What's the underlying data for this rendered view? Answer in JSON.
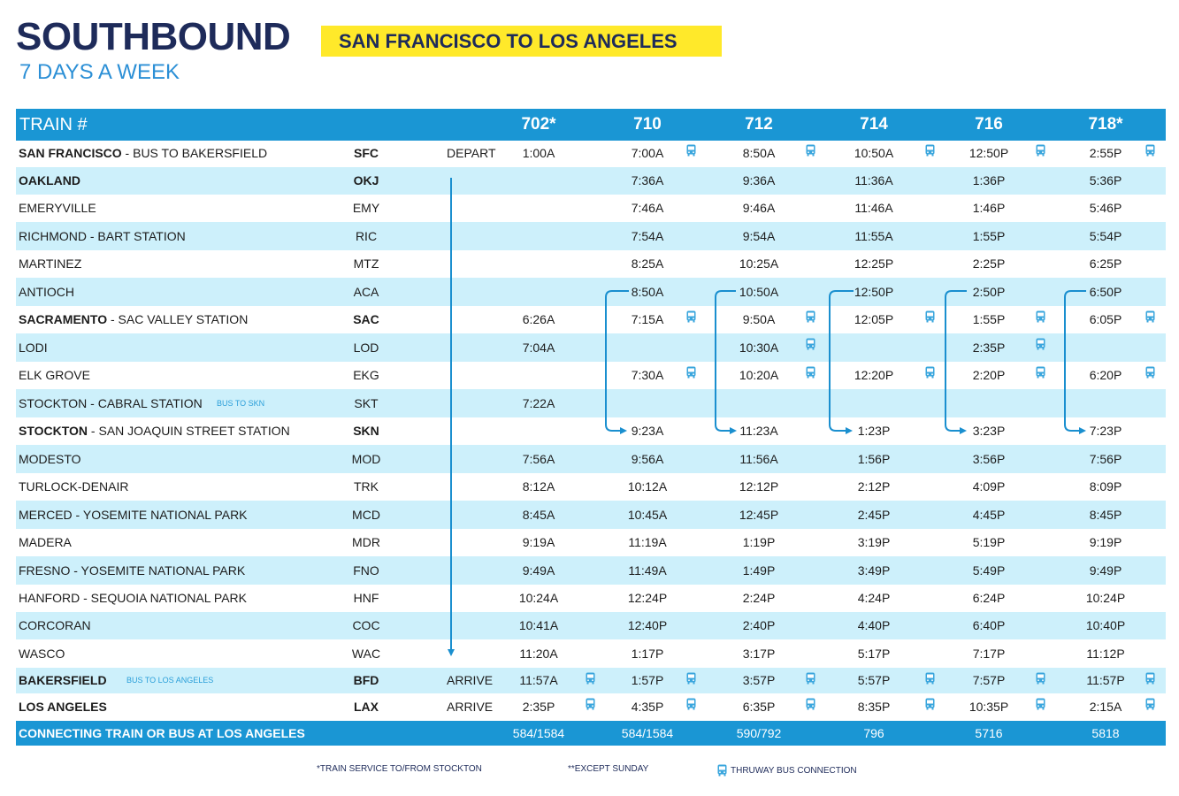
{
  "header": {
    "title": "SOUTHBOUND",
    "route": "SAN FRANCISCO TO LOS ANGELES",
    "days": "7 DAYS A WEEK"
  },
  "table": {
    "train_label": "TRAIN #",
    "trains": [
      "702*",
      "710",
      "712",
      "714",
      "716",
      "718*"
    ],
    "rows": [
      {
        "station": "SAN FRANCISCO",
        "suffix": " - BUS TO BAKERSFIELD",
        "code": "SFC",
        "action": "DEPART",
        "bold": true,
        "times": [
          "1:00A",
          "7:00A",
          "8:50A",
          "10:50A",
          "12:50P",
          "2:55P"
        ],
        "bus": [
          false,
          true,
          true,
          true,
          true,
          true
        ]
      },
      {
        "station": "OAKLAND",
        "suffix": "",
        "code": "OKJ",
        "bold": true,
        "times": [
          "",
          "7:36A",
          "9:36A",
          "11:36A",
          "1:36P",
          "5:36P"
        ],
        "bus": [
          false,
          false,
          false,
          false,
          false,
          false
        ]
      },
      {
        "station": "EMERYVILLE",
        "suffix": "",
        "code": "EMY",
        "bold": false,
        "times": [
          "",
          "7:46A",
          "9:46A",
          "11:46A",
          "1:46P",
          "5:46P"
        ],
        "bus": [
          false,
          false,
          false,
          false,
          false,
          false
        ]
      },
      {
        "station": "RICHMOND - BART STATION",
        "suffix": "",
        "code": "RIC",
        "bold": false,
        "times": [
          "",
          "7:54A",
          "9:54A",
          "11:55A",
          "1:55P",
          "5:54P"
        ],
        "bus": [
          false,
          false,
          false,
          false,
          false,
          false
        ]
      },
      {
        "station": "MARTINEZ",
        "suffix": "",
        "code": "MTZ",
        "bold": false,
        "times": [
          "",
          "8:25A",
          "10:25A",
          "12:25P",
          "2:25P",
          "6:25P"
        ],
        "bus": [
          false,
          false,
          false,
          false,
          false,
          false
        ]
      },
      {
        "station": "ANTIOCH",
        "suffix": "",
        "code": "ACA",
        "bold": false,
        "times": [
          "",
          "8:50A",
          "10:50A",
          "12:50P",
          "2:50P",
          "6:50P"
        ],
        "bus": [
          false,
          false,
          false,
          false,
          false,
          false
        ]
      },
      {
        "station": "SACRAMENTO",
        "suffix": " - SAC VALLEY STATION",
        "code": "SAC",
        "bold": true,
        "times": [
          "6:26A",
          "7:15A",
          "9:50A",
          "12:05P",
          "1:55P",
          "6:05P"
        ],
        "bus": [
          false,
          true,
          true,
          true,
          true,
          true
        ]
      },
      {
        "station": "LODI",
        "suffix": "",
        "code": "LOD",
        "bold": false,
        "times": [
          "7:04A",
          "",
          "10:30A",
          "",
          "2:35P",
          ""
        ],
        "bus": [
          false,
          false,
          true,
          false,
          true,
          false
        ]
      },
      {
        "station": "ELK GROVE",
        "suffix": "",
        "code": "EKG",
        "bold": false,
        "times": [
          "",
          "7:30A",
          "10:20A",
          "12:20P",
          "2:20P",
          "6:20P"
        ],
        "bus": [
          false,
          true,
          true,
          true,
          true,
          true
        ]
      },
      {
        "station": "STOCKTON - CABRAL STATION",
        "suffix": "",
        "note": "BUS TO SKN",
        "code": "SKT",
        "bold": false,
        "times": [
          "7:22A",
          "",
          "",
          "",
          "",
          ""
        ],
        "bus": [
          false,
          false,
          false,
          false,
          false,
          false
        ]
      },
      {
        "station": "STOCKTON",
        "suffix": " - SAN JOAQUIN STREET STATION",
        "code": "SKN",
        "bold": true,
        "times": [
          "",
          "9:23A",
          "11:23A",
          "1:23P",
          "3:23P",
          "7:23P"
        ],
        "bus": [
          false,
          false,
          false,
          false,
          false,
          false
        ]
      },
      {
        "station": "MODESTO",
        "suffix": "",
        "code": "MOD",
        "bold": false,
        "times": [
          "7:56A",
          "9:56A",
          "11:56A",
          "1:56P",
          "3:56P",
          "7:56P"
        ],
        "bus": [
          false,
          false,
          false,
          false,
          false,
          false
        ]
      },
      {
        "station": "TURLOCK-DENAIR",
        "suffix": "",
        "code": "TRK",
        "bold": false,
        "times": [
          "8:12A",
          "10:12A",
          "12:12P",
          "2:12P",
          "4:09P",
          "8:09P"
        ],
        "bus": [
          false,
          false,
          false,
          false,
          false,
          false
        ]
      },
      {
        "station": "MERCED - YOSEMITE NATIONAL PARK",
        "suffix": "",
        "code": "MCD",
        "bold": false,
        "times": [
          "8:45A",
          "10:45A",
          "12:45P",
          "2:45P",
          "4:45P",
          "8:45P"
        ],
        "bus": [
          false,
          false,
          false,
          false,
          false,
          false
        ]
      },
      {
        "station": "MADERA",
        "suffix": "",
        "code": "MDR",
        "bold": false,
        "times": [
          "9:19A",
          "11:19A",
          "1:19P",
          "3:19P",
          "5:19P",
          "9:19P"
        ],
        "bus": [
          false,
          false,
          false,
          false,
          false,
          false
        ]
      },
      {
        "station": "FRESNO - YOSEMITE NATIONAL PARK",
        "suffix": "",
        "code": "FNO",
        "bold": false,
        "times": [
          "9:49A",
          "11:49A",
          "1:49P",
          "3:49P",
          "5:49P",
          "9:49P"
        ],
        "bus": [
          false,
          false,
          false,
          false,
          false,
          false
        ]
      },
      {
        "station": "HANFORD - SEQUOIA NATIONAL PARK",
        "suffix": "",
        "code": "HNF",
        "bold": false,
        "times": [
          "10:24A",
          "12:24P",
          "2:24P",
          "4:24P",
          "6:24P",
          "10:24P"
        ],
        "bus": [
          false,
          false,
          false,
          false,
          false,
          false
        ]
      },
      {
        "station": "CORCORAN",
        "suffix": "",
        "code": "COC",
        "bold": false,
        "times": [
          "10:41A",
          "12:40P",
          "2:40P",
          "4:40P",
          "6:40P",
          "10:40P"
        ],
        "bus": [
          false,
          false,
          false,
          false,
          false,
          false
        ]
      },
      {
        "station": "WASCO",
        "suffix": "",
        "code": "WAC",
        "bold": false,
        "times": [
          "11:20A",
          "1:17P",
          "3:17P",
          "5:17P",
          "7:17P",
          "11:12P"
        ],
        "bus": [
          false,
          false,
          false,
          false,
          false,
          false
        ]
      },
      {
        "station": "BAKERSFIELD",
        "suffix": "",
        "note": "BUS TO LOS ANGELES",
        "code": "BFD",
        "action": "ARRIVE",
        "bold": true,
        "times": [
          "11:57A",
          "1:57P",
          "3:57P",
          "5:57P",
          "7:57P",
          "11:57P"
        ],
        "bus": [
          true,
          true,
          true,
          true,
          true,
          true
        ]
      },
      {
        "station": "LOS ANGELES",
        "suffix": "",
        "code": "LAX",
        "action": "ARRIVE",
        "bold": true,
        "times": [
          "2:35P",
          "4:35P",
          "6:35P",
          "8:35P",
          "10:35P",
          "2:15A"
        ],
        "bus": [
          true,
          true,
          true,
          true,
          true,
          true
        ]
      }
    ]
  },
  "footer": {
    "label": "CONNECTING TRAIN OR BUS AT LOS ANGELES",
    "connections": [
      "584/1584",
      "584/1584",
      "590/792",
      "796",
      "5716",
      "5818"
    ]
  },
  "legend": {
    "train_service": "*TRAIN SERVICE TO/FROM STOCKTON",
    "except_sunday": "**EXCEPT SUNDAY",
    "thruway": "THRUWAY BUS CONNECTION"
  },
  "colors": {
    "navy": "#1e2b5a",
    "header_blue": "#1a96d4",
    "row_shade": "#cdf0fb",
    "highlight_yellow": "#ffe92a",
    "accent_blue": "#2b8fd6"
  }
}
